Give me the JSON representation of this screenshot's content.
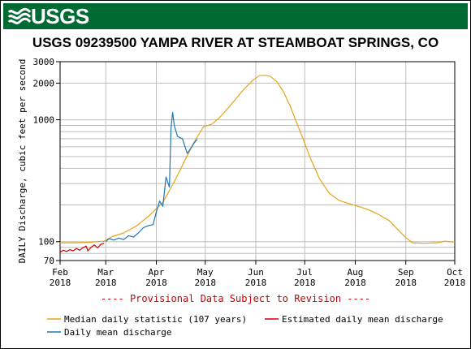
{
  "header": {
    "logo": "USGS"
  },
  "chart_data": {
    "type": "line",
    "title": "USGS 09239500 YAMPA RIVER AT STEAMBOAT SPRINGS, CO",
    "ylabel": "DAILY Discharge, cubic feet per second",
    "xlabel": "",
    "y_scale": "log",
    "ylim": [
      70,
      3000
    ],
    "xlim": [
      "2018-02-01",
      "2018-10-01"
    ],
    "y_ticks": [
      70,
      100,
      1000,
      2000,
      3000
    ],
    "y_grid_values": [
      70,
      80,
      90,
      100,
      200,
      300,
      400,
      500,
      600,
      700,
      800,
      900,
      1000,
      2000,
      3000
    ],
    "x_ticks": [
      {
        "date": "2018-02-01",
        "line1": "Feb",
        "line2": "2018"
      },
      {
        "date": "2018-03-01",
        "line1": "Mar",
        "line2": "2018"
      },
      {
        "date": "2018-04-01",
        "line1": "Apr",
        "line2": "2018"
      },
      {
        "date": "2018-05-01",
        "line1": "May",
        "line2": "2018"
      },
      {
        "date": "2018-06-01",
        "line1": "Jun",
        "line2": "2018"
      },
      {
        "date": "2018-07-01",
        "line1": "Jul",
        "line2": "2018"
      },
      {
        "date": "2018-08-01",
        "line1": "Aug",
        "line2": "2018"
      },
      {
        "date": "2018-09-01",
        "line1": "Sep",
        "line2": "2018"
      },
      {
        "date": "2018-10-01",
        "line1": "Oct",
        "line2": "2018"
      }
    ],
    "grid": true,
    "annotation": "---- Provisional Data Subject to Revision ----",
    "legend_placement": "bottom",
    "series": [
      {
        "name": "Median daily statistic (107 years)",
        "color": "#e8a317",
        "points": [
          [
            "2018-02-01",
            98
          ],
          [
            "2018-02-10",
            98
          ],
          [
            "2018-02-20",
            99
          ],
          [
            "2018-02-28",
            101
          ],
          [
            "2018-03-05",
            110
          ],
          [
            "2018-03-12",
            118
          ],
          [
            "2018-03-20",
            135
          ],
          [
            "2018-03-28",
            165
          ],
          [
            "2018-04-05",
            210
          ],
          [
            "2018-04-12",
            310
          ],
          [
            "2018-04-18",
            450
          ],
          [
            "2018-04-24",
            650
          ],
          [
            "2018-04-30",
            880
          ],
          [
            "2018-05-05",
            920
          ],
          [
            "2018-05-10",
            1050
          ],
          [
            "2018-05-15",
            1250
          ],
          [
            "2018-05-20",
            1500
          ],
          [
            "2018-05-25",
            1800
          ],
          [
            "2018-05-30",
            2100
          ],
          [
            "2018-06-03",
            2300
          ],
          [
            "2018-06-07",
            2320
          ],
          [
            "2018-06-10",
            2270
          ],
          [
            "2018-06-14",
            2050
          ],
          [
            "2018-06-18",
            1700
          ],
          [
            "2018-06-22",
            1300
          ],
          [
            "2018-06-26",
            950
          ],
          [
            "2018-06-30",
            700
          ],
          [
            "2018-07-04",
            500
          ],
          [
            "2018-07-10",
            330
          ],
          [
            "2018-07-16",
            250
          ],
          [
            "2018-07-22",
            218
          ],
          [
            "2018-07-31",
            200
          ],
          [
            "2018-08-08",
            185
          ],
          [
            "2018-08-15",
            168
          ],
          [
            "2018-08-22",
            148
          ],
          [
            "2018-08-28",
            122
          ],
          [
            "2018-09-01",
            108
          ],
          [
            "2018-09-05",
            98
          ],
          [
            "2018-09-12",
            97
          ],
          [
            "2018-09-20",
            98
          ],
          [
            "2018-09-25",
            101
          ],
          [
            "2018-10-01",
            99
          ]
        ]
      },
      {
        "name": "Estimated daily mean discharge",
        "color": "#cc0000",
        "points": [
          [
            "2018-02-01",
            82
          ],
          [
            "2018-02-03",
            85
          ],
          [
            "2018-02-05",
            83
          ],
          [
            "2018-02-07",
            86
          ],
          [
            "2018-02-09",
            84
          ],
          [
            "2018-02-11",
            88
          ],
          [
            "2018-02-13",
            85
          ],
          [
            "2018-02-15",
            89
          ],
          [
            "2018-02-17",
            92
          ],
          [
            "2018-02-18",
            84
          ],
          [
            "2018-02-20",
            90
          ],
          [
            "2018-02-22",
            94
          ],
          [
            "2018-02-24",
            89
          ],
          [
            "2018-02-26",
            95
          ],
          [
            "2018-02-28",
            97
          ]
        ]
      },
      {
        "name": "Daily mean discharge",
        "color": "#1f77b4",
        "points": [
          [
            "2018-03-01",
            100
          ],
          [
            "2018-03-03",
            106
          ],
          [
            "2018-03-06",
            103
          ],
          [
            "2018-03-09",
            107
          ],
          [
            "2018-03-12",
            104
          ],
          [
            "2018-03-15",
            112
          ],
          [
            "2018-03-18",
            109
          ],
          [
            "2018-03-21",
            118
          ],
          [
            "2018-03-24",
            130
          ],
          [
            "2018-03-27",
            135
          ],
          [
            "2018-03-30",
            138
          ],
          [
            "2018-04-01",
            175
          ],
          [
            "2018-04-03",
            215
          ],
          [
            "2018-04-05",
            195
          ],
          [
            "2018-04-07",
            340
          ],
          [
            "2018-04-09",
            280
          ],
          [
            "2018-04-10",
            860
          ],
          [
            "2018-04-11",
            1150
          ],
          [
            "2018-04-12",
            900
          ],
          [
            "2018-04-14",
            730
          ],
          [
            "2018-04-17",
            700
          ],
          [
            "2018-04-20",
            530
          ],
          [
            "2018-04-22",
            580
          ],
          [
            "2018-04-24",
            640
          ],
          [
            "2018-04-26",
            690
          ]
        ]
      }
    ]
  }
}
